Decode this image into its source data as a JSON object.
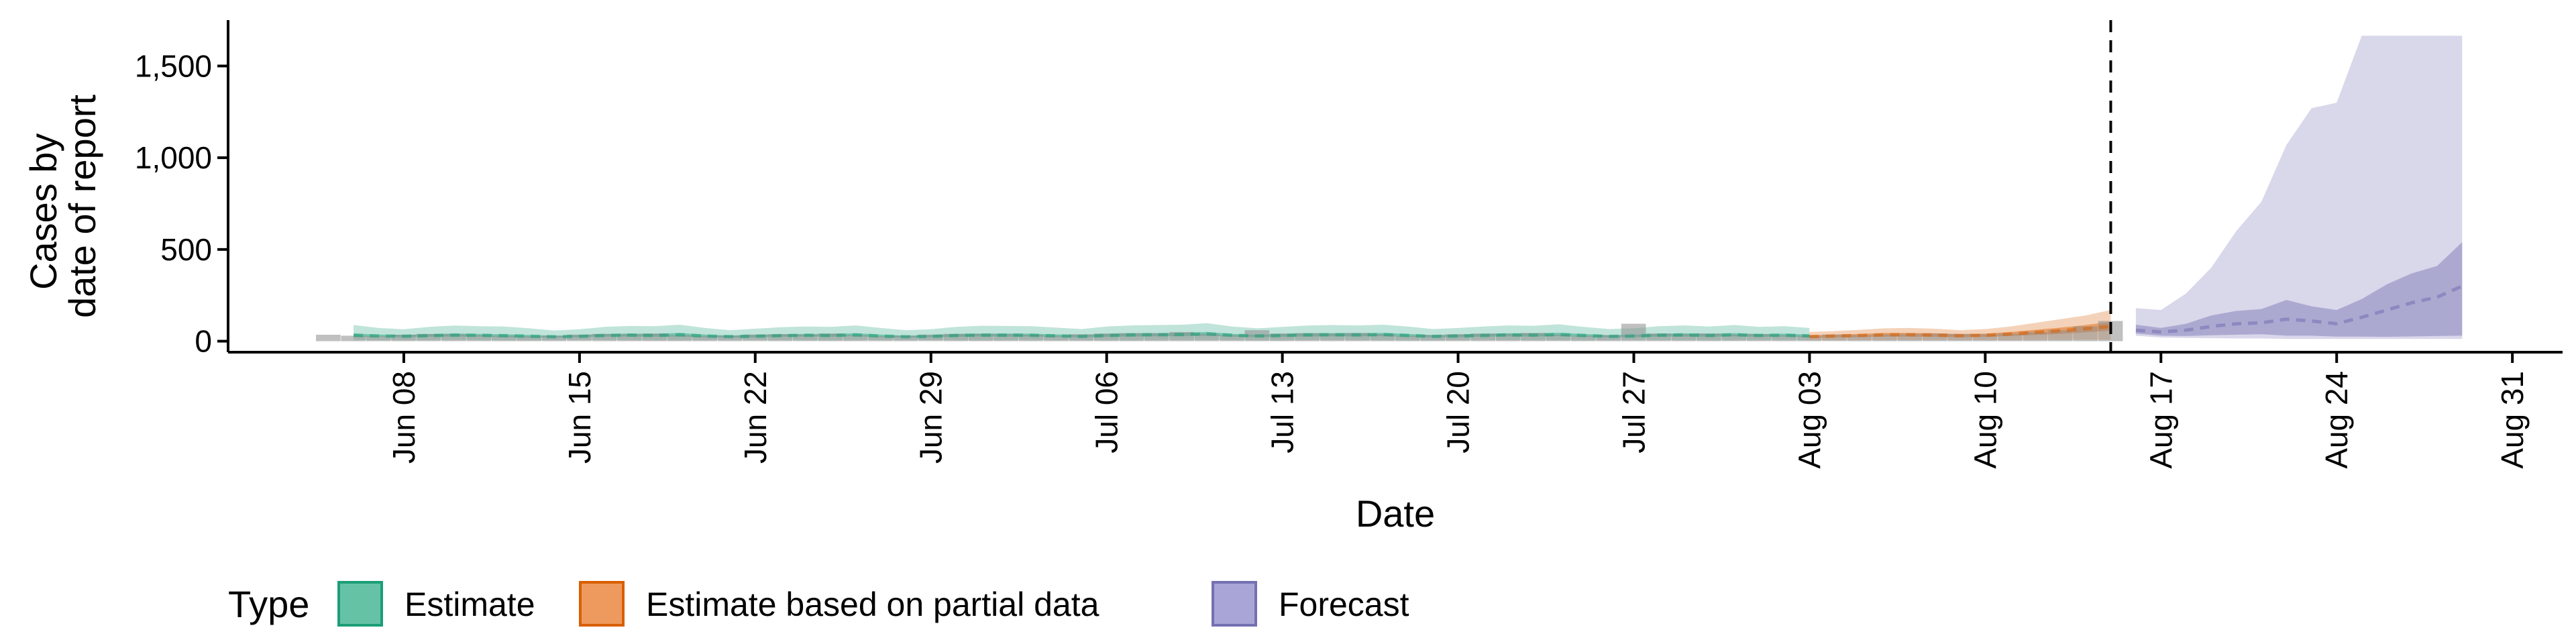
{
  "chart_data": {
    "type": "area",
    "title": "",
    "xlabel": "Date",
    "ylabel_lines": [
      "Cases by",
      "date of report"
    ],
    "ylim": [
      -60,
      1750
    ],
    "xlim": [
      "2020-06-01",
      "2020-09-02"
    ],
    "y_ticks": [
      {
        "value": 0,
        "label": "0"
      },
      {
        "value": 500,
        "label": "500"
      },
      {
        "value": 1000,
        "label": "1,000"
      },
      {
        "value": 1500,
        "label": "1,500"
      }
    ],
    "x_ticks": [
      {
        "date": "2020-06-08",
        "label": "Jun 08"
      },
      {
        "date": "2020-06-15",
        "label": "Jun 15"
      },
      {
        "date": "2020-06-22",
        "label": "Jun 22"
      },
      {
        "date": "2020-06-29",
        "label": "Jun 29"
      },
      {
        "date": "2020-07-06",
        "label": "Jul 06"
      },
      {
        "date": "2020-07-13",
        "label": "Jul 13"
      },
      {
        "date": "2020-07-20",
        "label": "Jul 20"
      },
      {
        "date": "2020-07-27",
        "label": "Jul 27"
      },
      {
        "date": "2020-08-03",
        "label": "Aug 03"
      },
      {
        "date": "2020-08-10",
        "label": "Aug 10"
      },
      {
        "date": "2020-08-17",
        "label": "Aug 17"
      },
      {
        "date": "2020-08-24",
        "label": "Aug 24"
      },
      {
        "date": "2020-08-31",
        "label": "Aug 31"
      }
    ],
    "vline_date": "2020-08-15",
    "grid": false,
    "legend": {
      "title": "Type",
      "position": "bottom",
      "items": [
        {
          "label": "Estimate",
          "fill": "#66C2A5",
          "stroke": "#1B9E77"
        },
        {
          "label": "Estimate based on partial data",
          "fill": "#EE9A5E",
          "stroke": "#D95F02"
        },
        {
          "label": "Forecast",
          "fill": "#A9A5D6",
          "stroke": "#7570B3"
        }
      ]
    },
    "colors": {
      "estimate": "#1B9E77",
      "partial": "#D95F02",
      "forecast": "#7570B3",
      "observed": "#8C8C8C"
    },
    "series": [
      {
        "name": "Estimate",
        "start": "2020-06-06",
        "lower90": [
          5,
          6,
          5,
          6,
          7,
          6,
          5,
          5,
          6,
          7,
          6,
          6,
          5,
          5,
          6,
          7,
          7,
          6,
          5,
          5,
          6,
          7,
          6,
          6,
          5,
          5,
          6,
          7,
          6,
          6,
          5,
          5,
          6,
          7,
          7,
          6,
          5,
          5,
          6,
          7,
          6,
          6,
          5,
          5,
          6,
          7,
          6,
          6,
          5,
          5,
          6,
          7,
          6,
          6,
          5,
          5,
          6,
          7,
          6
        ],
        "upper90": [
          88,
          72,
          65,
          78,
          85,
          82,
          80,
          70,
          58,
          65,
          78,
          83,
          82,
          90,
          72,
          60,
          68,
          76,
          80,
          78,
          86,
          72,
          60,
          65,
          78,
          84,
          83,
          82,
          74,
          66,
          80,
          86,
          88,
          90,
          98,
          80,
          70,
          78,
          85,
          88,
          86,
          90,
          80,
          66,
          72,
          80,
          86,
          84,
          92,
          78,
          66,
          70,
          82,
          86,
          80,
          88,
          78,
          82,
          72
        ],
        "lower50": [
          22,
          24,
          22,
          24,
          26,
          25,
          22,
          20,
          20,
          22,
          25,
          26,
          24,
          26,
          22,
          20,
          21,
          24,
          26,
          24,
          28,
          22,
          20,
          21,
          24,
          26,
          25,
          26,
          23,
          21,
          24,
          26,
          27,
          28,
          30,
          25,
          22,
          24,
          26,
          27,
          27,
          28,
          24,
          21,
          22,
          25,
          27,
          26,
          28,
          24,
          21,
          22,
          25,
          26,
          24,
          27,
          24,
          25,
          22
        ],
        "upper50": [
          42,
          36,
          34,
          38,
          42,
          40,
          38,
          34,
          30,
          33,
          39,
          42,
          40,
          45,
          36,
          31,
          34,
          38,
          40,
          39,
          43,
          36,
          30,
          33,
          39,
          42,
          42,
          41,
          37,
          33,
          40,
          43,
          44,
          45,
          50,
          40,
          35,
          39,
          43,
          44,
          43,
          45,
          40,
          33,
          36,
          40,
          43,
          42,
          46,
          39,
          33,
          35,
          41,
          43,
          40,
          44,
          39,
          41,
          36
        ],
        "median": [
          32,
          28,
          27,
          30,
          33,
          32,
          30,
          27,
          24,
          26,
          31,
          33,
          31,
          35,
          28,
          25,
          27,
          30,
          32,
          31,
          34,
          28,
          24,
          26,
          31,
          33,
          33,
          32,
          29,
          26,
          31,
          34,
          35,
          36,
          40,
          32,
          28,
          31,
          34,
          35,
          34,
          36,
          31,
          26,
          28,
          31,
          34,
          33,
          36,
          31,
          26,
          28,
          32,
          34,
          31,
          35,
          31,
          33,
          29
        ]
      },
      {
        "name": "Estimate based on partial data",
        "start": "2020-08-03",
        "lower90": [
          5,
          5,
          6,
          6,
          6,
          7,
          6,
          6,
          6,
          7,
          7,
          8,
          8
        ],
        "upper90": [
          50,
          55,
          62,
          70,
          72,
          68,
          60,
          66,
          80,
          100,
          120,
          140,
          170
        ],
        "lower50": [
          18,
          20,
          22,
          25,
          25,
          24,
          21,
          23,
          28,
          34,
          40,
          48,
          58
        ],
        "upper50": [
          32,
          36,
          40,
          45,
          45,
          43,
          38,
          41,
          50,
          62,
          74,
          88,
          105
        ],
        "median": [
          25,
          28,
          31,
          35,
          35,
          33,
          30,
          32,
          39,
          48,
          57,
          68,
          80
        ]
      },
      {
        "name": "Forecast",
        "start": "2020-08-16",
        "lower90": [
          30,
          20,
          18,
          16,
          15,
          15,
          12,
          12,
          12,
          12,
          12,
          12,
          12,
          12
        ],
        "upper90": [
          180,
          170,
          260,
          400,
          600,
          760,
          1070,
          1270,
          1300,
          1665,
          1665,
          1665,
          1665,
          1665
        ],
        "lower50": [
          42,
          30,
          28,
          32,
          35,
          38,
          30,
          30,
          25,
          25,
          24,
          26,
          28,
          30
        ],
        "upper50": [
          90,
          72,
          95,
          140,
          165,
          175,
          225,
          190,
          170,
          230,
          310,
          370,
          410,
          540
        ],
        "median": [
          60,
          50,
          60,
          80,
          95,
          100,
          120,
          110,
          95,
          130,
          170,
          210,
          240,
          300
        ]
      }
    ],
    "observed_reports": {
      "start": "2020-06-05",
      "values": [
        35,
        30,
        28,
        35,
        40,
        38,
        33,
        30,
        27,
        30,
        36,
        40,
        38,
        42,
        33,
        28,
        31,
        36,
        38,
        36,
        42,
        33,
        27,
        30,
        36,
        40,
        40,
        38,
        35,
        30,
        38,
        42,
        44,
        44,
        50,
        40,
        33,
        60,
        42,
        44,
        42,
        45,
        38,
        30,
        34,
        38,
        42,
        40,
        45,
        36,
        30,
        33,
        95,
        42,
        38,
        42,
        36,
        38,
        33,
        30,
        36,
        34,
        38,
        40,
        42,
        40,
        38,
        42,
        50,
        60,
        80,
        110
      ]
    }
  }
}
